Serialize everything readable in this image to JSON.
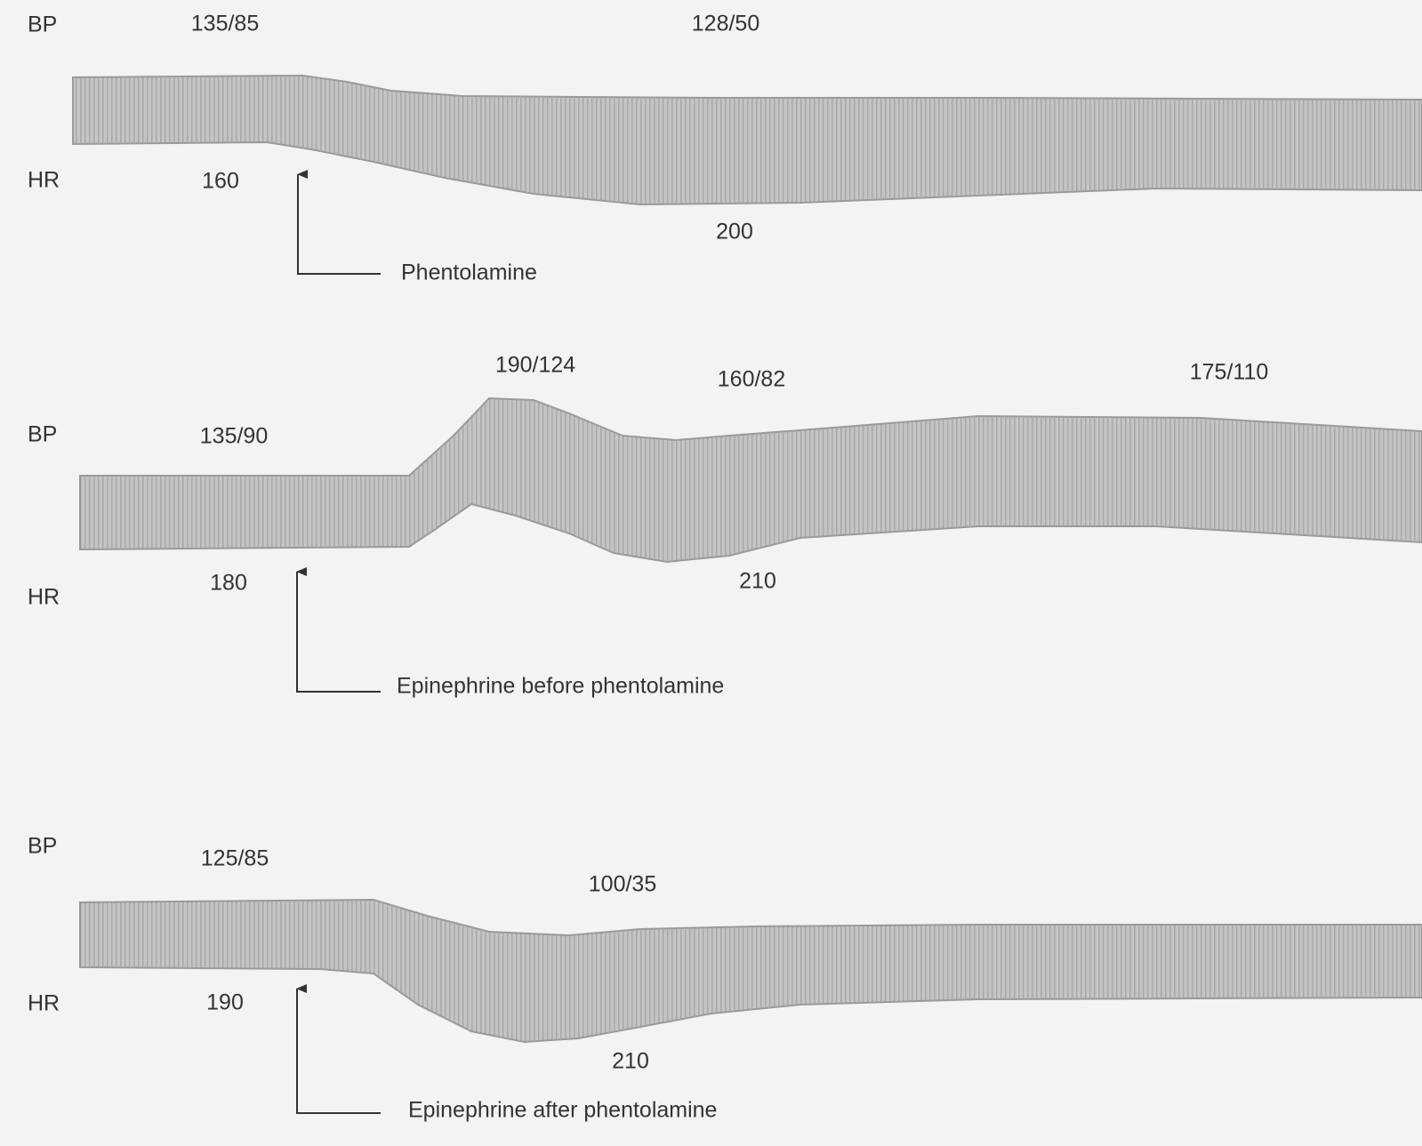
{
  "panels": [
    {
      "bp_label": "BP",
      "hr_label": "HR",
      "bp_readings": [
        "135/85",
        "128/50"
      ],
      "hr_readings": [
        "160",
        "200"
      ],
      "drug": "Phentolamine"
    },
    {
      "bp_label": "BP",
      "hr_label": "HR",
      "bp_readings": [
        "135/90",
        "190/124",
        "160/82",
        "175/110"
      ],
      "hr_readings": [
        "180",
        "210"
      ],
      "drug": "Epinephrine before phentolamine"
    },
    {
      "bp_label": "BP",
      "hr_label": "HR",
      "bp_readings": [
        "125/85",
        "100/35"
      ],
      "hr_readings": [
        "190",
        "210"
      ],
      "drug": "Epinephrine after phentolamine"
    }
  ]
}
